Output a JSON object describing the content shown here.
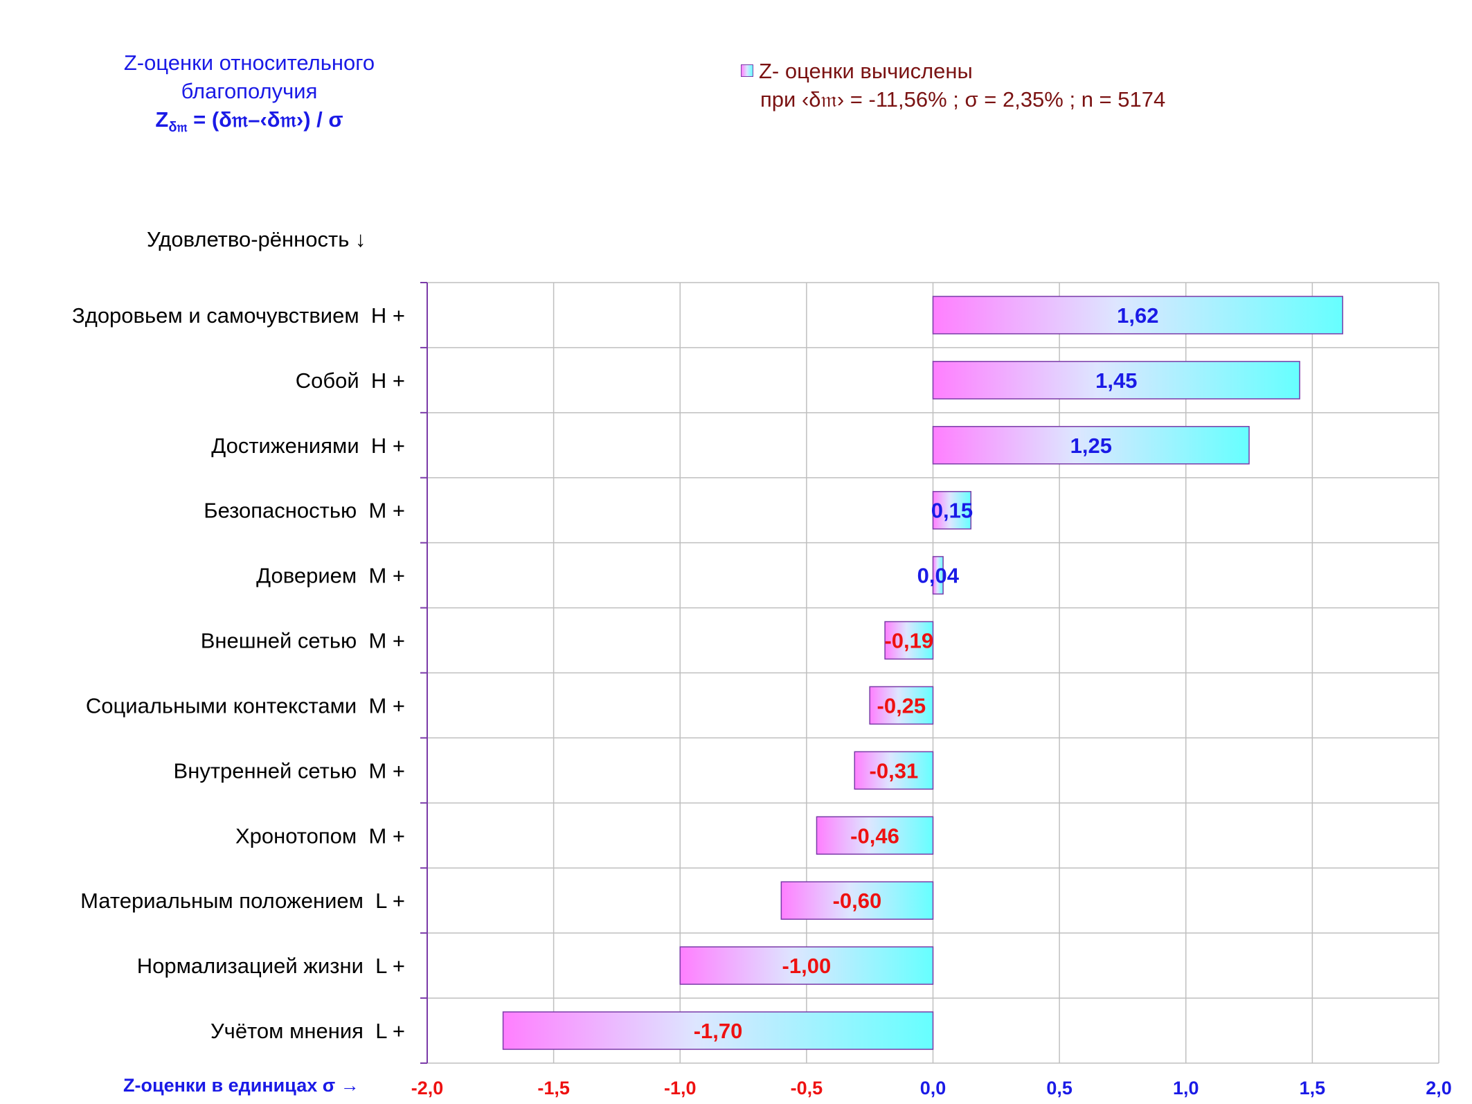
{
  "title": {
    "line1": "Z-оценки  относительного",
    "line2": "благополучия",
    "formula_symbol": "Z",
    "formula_subscript": "δ𝔪",
    "formula_rest": " = (δ𝔪–‹δ𝔪›) / σ"
  },
  "legend": {
    "line1": "Z- оценки вычислены",
    "line2": "при ‹δ𝔪› = -11,56% ; σ = 2,35% ; n = 5174"
  },
  "ylabel": "Удовлетво-рённость ↓",
  "xlabel": "Z-оценки в единицах σ →",
  "colors": {
    "positive": "#1a1ae6",
    "negative": "#ee1111",
    "bar_start": "#ff7fff",
    "bar_mid": "#dde6ff",
    "bar_end": "#66ffff",
    "bar_border": "#7a3aa8",
    "grid": "#bfbfbf",
    "axis": "#7a3aa8"
  },
  "chart_data": {
    "type": "bar",
    "orientation": "horizontal",
    "categories": [
      "Здоровьем и самочувствием  H +",
      "Собой  H +",
      "Достижениями  H +",
      "Безопасностью  M +",
      "Доверием  M +",
      "Внешней сетью  M +",
      "Социальными контекстами  M +",
      "Внутренней сетью  M +",
      "Хронотопом  M +",
      "Материальным положением  L +",
      "Нормализацией жизни  L +",
      "Учётом мнения  L +"
    ],
    "values": [
      1.62,
      1.45,
      1.25,
      0.15,
      0.04,
      -0.19,
      -0.25,
      -0.31,
      -0.46,
      -0.6,
      -1.0,
      -1.7
    ],
    "value_labels": [
      "1,62",
      "1,45",
      "1,25",
      "0,15",
      "0,04",
      "-0,19",
      "-0,25",
      "-0,31",
      "-0,46",
      "-0,60",
      "-1,00",
      "-1,70"
    ],
    "xlim": [
      -2.0,
      2.0
    ],
    "ticks": [
      -2.0,
      -1.5,
      -1.0,
      -0.5,
      0.0,
      0.5,
      1.0,
      1.5,
      2.0
    ],
    "tick_labels": [
      "-2,0",
      "-1,5",
      "-1,0",
      "-0,5",
      "0,0",
      "0,5",
      "1,0",
      "1,5",
      "2,0"
    ],
    "grid": true,
    "legend_position": "top-right"
  }
}
